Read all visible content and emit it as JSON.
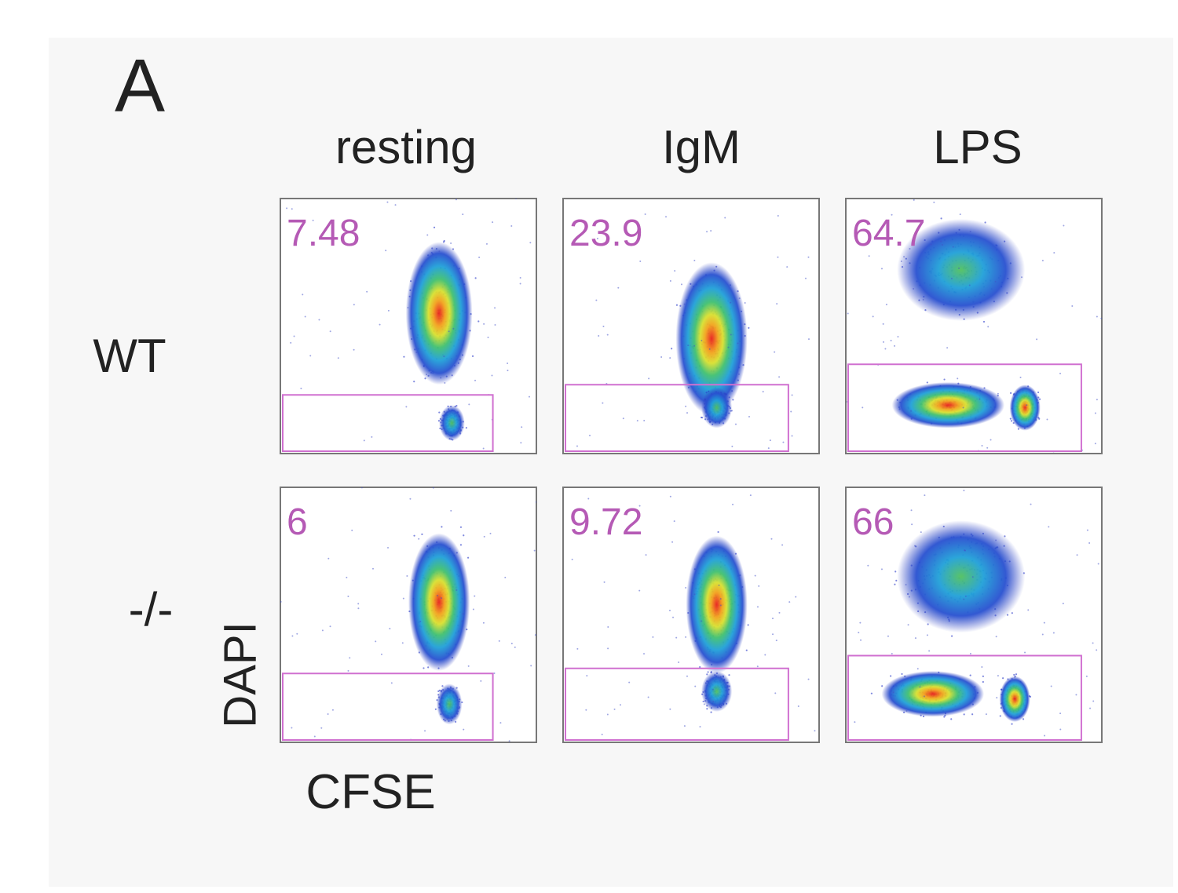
{
  "panel_label": "A",
  "columns": [
    "resting",
    "IgM",
    "LPS"
  ],
  "rows": [
    {
      "label": "WT",
      "gates": [
        7.48,
        23.9,
        64.7
      ]
    },
    {
      "label": "-/-",
      "gates": [
        6,
        9.72,
        66
      ]
    }
  ],
  "y_axis_label": "DAPI",
  "x_axis_label": "CFSE"
}
